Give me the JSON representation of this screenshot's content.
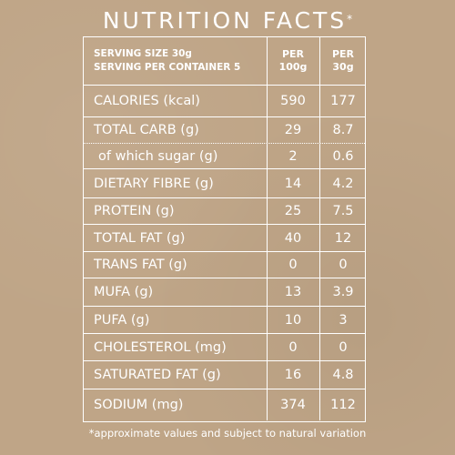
{
  "title": "NUTRITION FACTS",
  "title_mark": "*",
  "header": {
    "serving_size": "SERVING SIZE 30g",
    "servings_per_container": "SERVING PER CONTAINER 5",
    "col1_line1": "PER",
    "col1_line2": "100g",
    "col2_line1": "PER",
    "col2_line2": "30g"
  },
  "rows": [
    {
      "label": "CALORIES (kcal)",
      "per100": "590",
      "per30": "177"
    },
    {
      "label": "TOTAL CARB (g)",
      "per100": "29",
      "per30": "8.7"
    },
    {
      "label": "of which sugar (g)",
      "per100": "2",
      "per30": "0.6"
    },
    {
      "label": "DIETARY FIBRE (g)",
      "per100": "14",
      "per30": "4.2"
    },
    {
      "label": "PROTEIN (g)",
      "per100": "25",
      "per30": "7.5"
    },
    {
      "label": "TOTAL FAT (g)",
      "per100": "40",
      "per30": "12"
    },
    {
      "label": "TRANS FAT (g)",
      "per100": "0",
      "per30": "0"
    },
    {
      "label": "MUFA (g)",
      "per100": "13",
      "per30": "3.9"
    },
    {
      "label": "PUFA (g)",
      "per100": "10",
      "per30": "3"
    },
    {
      "label": "CHOLESTEROL (mg)",
      "per100": "0",
      "per30": "0"
    },
    {
      "label": "SATURATED FAT (g)",
      "per100": "16",
      "per30": "4.8"
    },
    {
      "label": "SODIUM (mg)",
      "per100": "374",
      "per30": "112"
    }
  ],
  "footnote": "*approximate values and subject to natural variation",
  "colors": {
    "background": "#bfa587",
    "text": "#ffffff"
  }
}
